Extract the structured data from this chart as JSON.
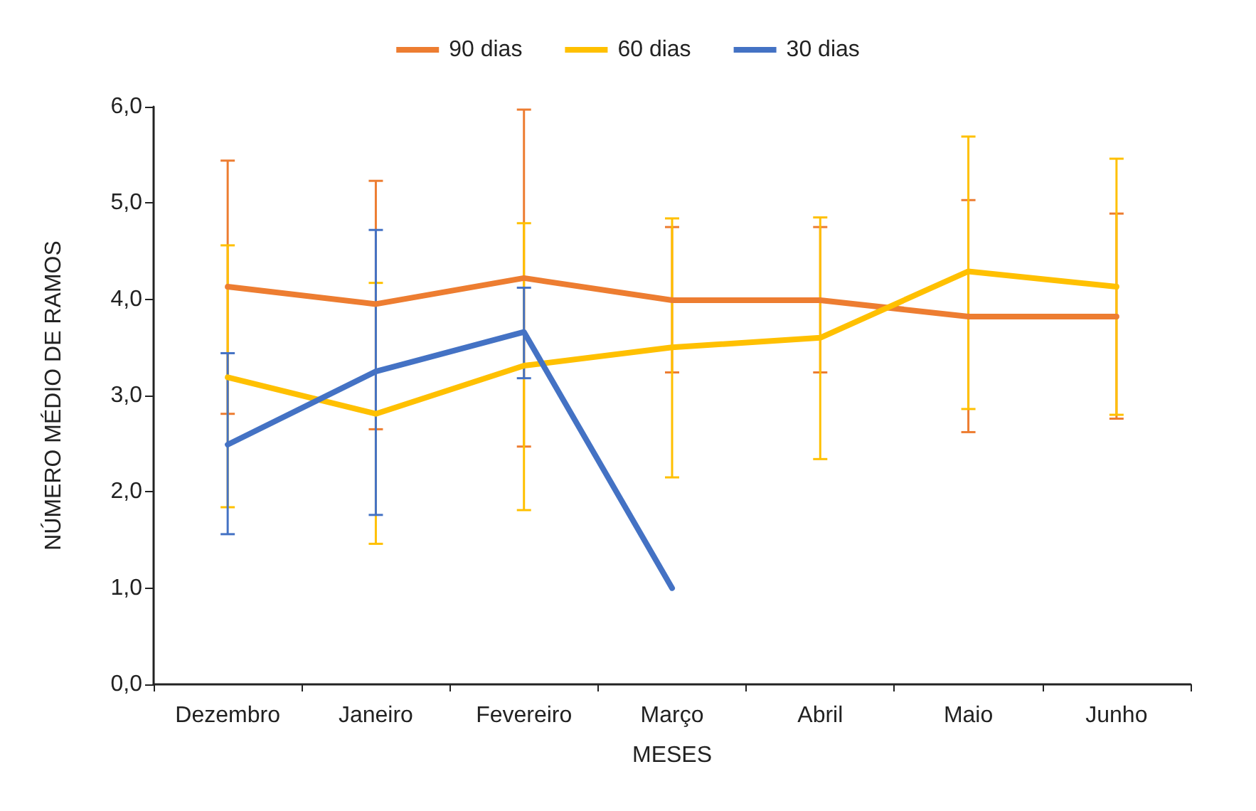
{
  "chart_data": {
    "type": "line",
    "xlabel": "MESES",
    "ylabel": "NÚMERO MÉDIO DE RAMOS",
    "categories": [
      "Dezembro",
      "Janeiro",
      "Fevereiro",
      "Março",
      "Abril",
      "Maio",
      "Junho"
    ],
    "series": [
      {
        "name": "90 dias",
        "color": "#ed7d31",
        "values": [
          4.13,
          3.95,
          4.22,
          3.99,
          3.99,
          3.82,
          3.82
        ],
        "errors": [
          [
            2.81,
            5.44
          ],
          [
            2.65,
            5.23
          ],
          [
            2.47,
            5.97
          ],
          [
            3.24,
            4.75
          ],
          [
            3.24,
            4.75
          ],
          [
            2.62,
            5.03
          ],
          [
            2.76,
            4.89
          ]
        ]
      },
      {
        "name": "60 dias",
        "color": "#ffc000",
        "values": [
          3.19,
          2.81,
          3.31,
          3.5,
          3.6,
          4.29,
          4.13
        ],
        "errors": [
          [
            1.84,
            4.56
          ],
          [
            1.46,
            4.17
          ],
          [
            1.81,
            4.79
          ],
          [
            2.15,
            4.84
          ],
          [
            2.34,
            4.85
          ],
          [
            2.86,
            5.69
          ],
          [
            2.8,
            5.46
          ]
        ]
      },
      {
        "name": "30 dias",
        "color": "#4472c4",
        "values": [
          2.49,
          3.25,
          3.66,
          1.0,
          null,
          null,
          null
        ],
        "errors": [
          [
            1.56,
            3.44
          ],
          [
            1.76,
            4.72
          ],
          [
            3.18,
            4.12
          ],
          null,
          null,
          null,
          null
        ]
      }
    ],
    "ylim": [
      0,
      6
    ],
    "yticks": [
      {
        "value": 0,
        "label": "0,0"
      },
      {
        "value": 1,
        "label": "1,0"
      },
      {
        "value": 2,
        "label": "2,0"
      },
      {
        "value": 3,
        "label": "3,0"
      },
      {
        "value": 4,
        "label": "4,0"
      },
      {
        "value": 5,
        "label": "5,0"
      },
      {
        "value": 6,
        "label": "6,0"
      }
    ],
    "grid": false,
    "legend": "top",
    "marker": "none",
    "line_style": "solid"
  }
}
